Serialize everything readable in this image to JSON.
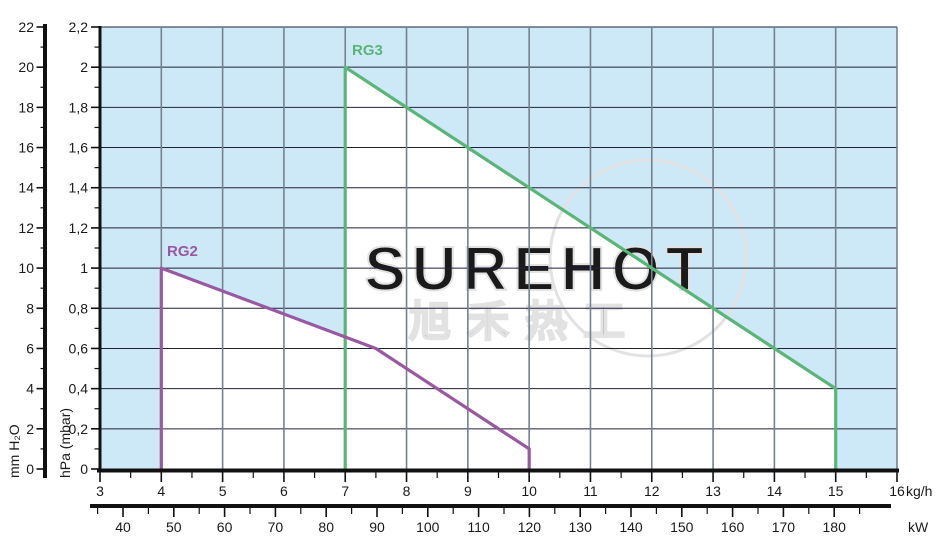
{
  "watermark": {
    "line1": "SUREHOT",
    "line2": "旭禾热工"
  },
  "chart_data": {
    "type": "line",
    "title": "",
    "x_axis_primary": {
      "unit_label": "kg/h",
      "min": 3,
      "max": 16,
      "major_ticks": [
        3,
        4,
        5,
        6,
        7,
        8,
        9,
        10,
        11,
        12,
        13,
        14,
        15,
        16
      ],
      "minor_step": 0.5,
      "position": "bottom"
    },
    "x_axis_secondary": {
      "unit_label": "kW",
      "min": 40,
      "max": 180,
      "major_ticks": [
        40,
        50,
        60,
        70,
        80,
        90,
        100,
        110,
        120,
        130,
        140,
        150,
        160,
        170,
        180
      ],
      "minor_step": 5,
      "position": "bottom-secondary"
    },
    "y_axis_primary": {
      "unit_label": "hPa (mbar)",
      "min": 0,
      "max": 2.2,
      "ticks": [
        {
          "v": 0,
          "label": "0"
        },
        {
          "v": 0.2,
          "label": "0,2"
        },
        {
          "v": 0.4,
          "label": "0,4"
        },
        {
          "v": 0.6,
          "label": "0,6"
        },
        {
          "v": 0.8,
          "label": "0,8"
        },
        {
          "v": 1,
          "label": "1"
        },
        {
          "v": 1.2,
          "label": "1,2"
        },
        {
          "v": 1.4,
          "label": "1,4"
        },
        {
          "v": 1.6,
          "label": "1,6"
        },
        {
          "v": 1.8,
          "label": "1,8"
        },
        {
          "v": 2,
          "label": "2"
        },
        {
          "v": 2.2,
          "label": "2,2"
        }
      ],
      "minor_step": 0.1,
      "position": "left"
    },
    "y_axis_secondary": {
      "unit_label": "mm H₂O",
      "min": 0,
      "max": 22,
      "ticks": [
        0,
        2,
        4,
        6,
        8,
        10,
        12,
        14,
        16,
        18,
        20,
        22
      ],
      "minor_step": 1,
      "position": "left-outer"
    },
    "grid": "on",
    "series": [
      {
        "name": "RG2",
        "color": "#9a58a2",
        "points": [
          [
            4,
            0
          ],
          [
            4,
            1.0
          ],
          [
            7.5,
            0.6
          ],
          [
            10,
            0.1
          ],
          [
            10,
            0
          ]
        ]
      },
      {
        "name": "RG3",
        "color": "#5bb578",
        "points": [
          [
            7,
            0
          ],
          [
            7,
            2.0
          ],
          [
            15,
            0.4
          ],
          [
            15,
            0
          ]
        ]
      }
    ],
    "colors": {
      "plot_bg": "#cde9f7",
      "region_fill": "#ffffff",
      "grid_h": "#20203a",
      "grid_v": "#74828e",
      "axis": "#111111",
      "text": "#1a1a1a",
      "watermark": "#e2e2e2"
    }
  }
}
